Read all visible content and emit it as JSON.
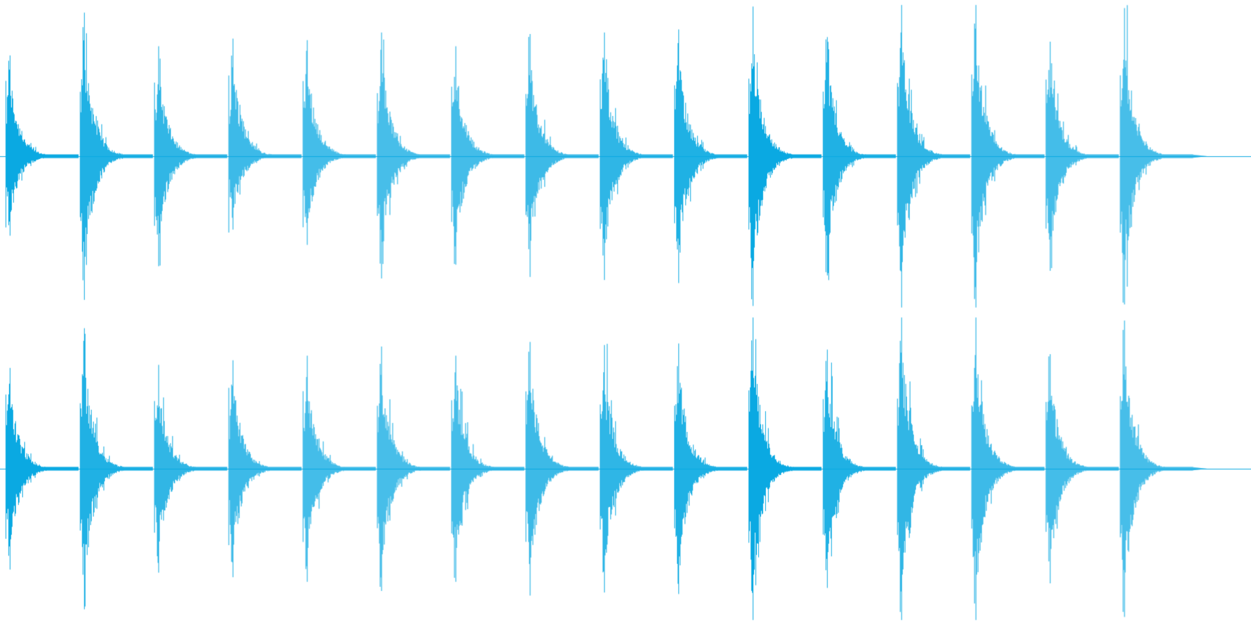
{
  "waveform": {
    "color": "#0aa9e2",
    "background": "#ffffff",
    "channels": [
      {
        "name": "channel-1",
        "hits": [
          {
            "up": 0.66,
            "down": 0.52
          },
          {
            "up": 0.94,
            "down": 0.94
          },
          {
            "up": 0.72,
            "down": 0.72
          },
          {
            "up": 0.77,
            "down": 0.48
          },
          {
            "up": 0.76,
            "down": 0.58
          },
          {
            "up": 0.81,
            "down": 0.8
          },
          {
            "up": 0.72,
            "down": 0.71
          },
          {
            "up": 0.8,
            "down": 0.79
          },
          {
            "up": 0.81,
            "down": 0.81
          },
          {
            "up": 0.83,
            "down": 0.83
          },
          {
            "up": 0.98,
            "down": 0.98
          },
          {
            "up": 0.78,
            "down": 0.78
          },
          {
            "up": 0.99,
            "down": 0.99
          },
          {
            "up": 0.99,
            "down": 0.99
          },
          {
            "up": 0.75,
            "down": 0.75
          },
          {
            "up": 0.97,
            "down": 0.97
          }
        ]
      },
      {
        "name": "channel-2",
        "hits": [
          {
            "up": 0.66,
            "down": 0.66
          },
          {
            "up": 0.92,
            "down": 0.92
          },
          {
            "up": 0.68,
            "down": 0.68
          },
          {
            "up": 0.71,
            "down": 0.71
          },
          {
            "up": 0.74,
            "down": 0.74
          },
          {
            "up": 0.8,
            "down": 0.8
          },
          {
            "up": 0.74,
            "down": 0.74
          },
          {
            "up": 0.83,
            "down": 0.83
          },
          {
            "up": 0.81,
            "down": 0.81
          },
          {
            "up": 0.82,
            "down": 0.82
          },
          {
            "up": 0.99,
            "down": 0.99
          },
          {
            "up": 0.78,
            "down": 0.78
          },
          {
            "up": 0.99,
            "down": 0.99
          },
          {
            "up": 0.99,
            "down": 0.99
          },
          {
            "up": 0.75,
            "down": 0.75
          },
          {
            "up": 0.97,
            "down": 0.97
          }
        ]
      }
    ]
  }
}
